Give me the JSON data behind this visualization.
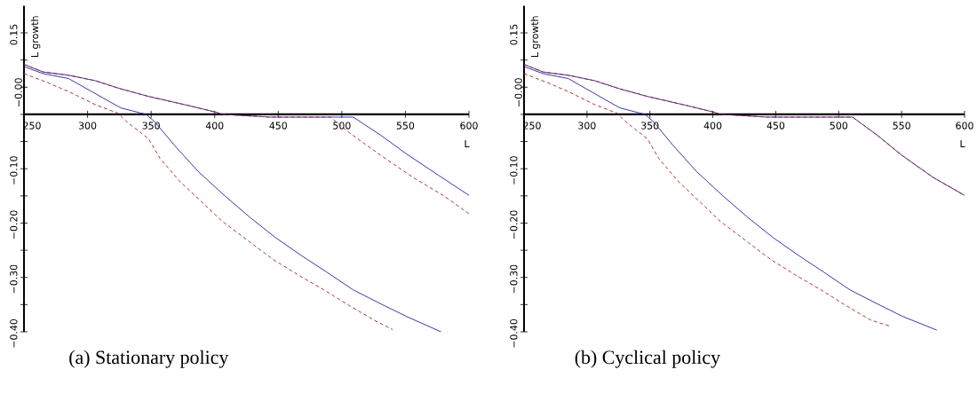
{
  "chart_data": [
    {
      "type": "line",
      "title": "(a) Stationary policy",
      "xlabel": "L",
      "ylabel": "L growth",
      "xlim": [
        250,
        600
      ],
      "ylim": [
        -0.4,
        0.2
      ],
      "xticks": [
        250,
        300,
        350,
        400,
        450,
        500,
        550,
        600
      ],
      "yticks": [
        {
          "value": 0.15,
          "label": "0.15"
        },
        {
          "value": 0.1,
          "label": null
        },
        {
          "value": 0.05,
          "label": null
        },
        {
          "value": 0,
          "label": null
        },
        {
          "value": -0.05,
          "label": null
        },
        {
          "value": -0.1,
          "label": "−0.10"
        },
        {
          "value": -0.15,
          "label": null
        },
        {
          "value": -0.2,
          "label": "−0.20"
        },
        {
          "value": -0.25,
          "label": null
        },
        {
          "value": -0.3,
          "label": "−0.30"
        },
        {
          "value": -0.35,
          "label": null
        },
        {
          "value": -0.4,
          "label": "−0.40"
        }
      ],
      "annotations": [
        "−0.00"
      ],
      "series": [
        {
          "color": "#2020a0",
          "line_style": "solid",
          "x": [
            250,
            265,
            285,
            306,
            326,
            348,
            378,
            401,
            406,
            443,
            509,
            531,
            551,
            576,
            600
          ],
          "values": [
            0.092,
            0.078,
            0.072,
            0.062,
            0.047,
            0.033,
            0.017,
            0.004,
            0,
            -0.005,
            -0.005,
            -0.039,
            -0.073,
            -0.112,
            -0.149
          ]
        },
        {
          "color": "#a02020",
          "line_style": "dashed",
          "x": [
            250,
            265,
            285,
            306,
            326,
            348,
            378,
            401,
            406,
            443,
            491,
            506,
            531,
            556,
            581,
            600
          ],
          "values": [
            0.092,
            0.078,
            0.072,
            0.062,
            0.047,
            0.033,
            0.017,
            0.004,
            0,
            -0.005,
            -0.005,
            -0.034,
            -0.076,
            -0.116,
            -0.151,
            -0.183
          ]
        },
        {
          "color": "#2020a0",
          "line_style": "solid",
          "x": [
            250,
            265,
            285,
            326,
            346,
            353,
            368,
            387,
            408,
            428,
            448,
            469,
            488,
            509,
            531,
            551,
            578
          ],
          "values": [
            0.088,
            0.075,
            0.066,
            0.012,
            0,
            -0.014,
            -0.056,
            -0.105,
            -0.15,
            -0.19,
            -0.227,
            -0.261,
            -0.29,
            -0.323,
            -0.349,
            -0.372,
            -0.4
          ]
        },
        {
          "color": "#a02020",
          "line_style": "dashed",
          "x": [
            250,
            269,
            286,
            306,
            324,
            331,
            348,
            357,
            372,
            387,
            406,
            426,
            446,
            466,
            486,
            506,
            525,
            540
          ],
          "values": [
            0.075,
            0.058,
            0.041,
            0.018,
            0.002,
            -0.014,
            -0.045,
            -0.081,
            -0.122,
            -0.155,
            -0.197,
            -0.232,
            -0.267,
            -0.296,
            -0.323,
            -0.352,
            -0.378,
            -0.396
          ]
        }
      ]
    },
    {
      "type": "line",
      "title": "(b) Cyclical policy",
      "xlabel": "L",
      "ylabel": "L growth",
      "xlim": [
        250,
        600
      ],
      "ylim": [
        -0.4,
        0.2
      ],
      "xticks": [
        250,
        300,
        350,
        400,
        450,
        500,
        550,
        600
      ],
      "yticks": [
        {
          "value": 0.15,
          "label": "0.15"
        },
        {
          "value": 0.1,
          "label": null
        },
        {
          "value": 0.05,
          "label": null
        },
        {
          "value": 0,
          "label": null
        },
        {
          "value": -0.05,
          "label": null
        },
        {
          "value": -0.1,
          "label": "−0.10"
        },
        {
          "value": -0.15,
          "label": null
        },
        {
          "value": -0.2,
          "label": "−0.20"
        },
        {
          "value": -0.25,
          "label": null
        },
        {
          "value": -0.3,
          "label": "−0.30"
        },
        {
          "value": -0.35,
          "label": null
        },
        {
          "value": -0.4,
          "label": "−0.40"
        }
      ],
      "annotations": [
        "−0.00"
      ],
      "series": [
        {
          "color": "#2020a0",
          "line_style": "solid",
          "x": [
            250,
            265,
            285,
            306,
            326,
            348,
            378,
            401,
            406,
            443,
            511,
            531,
            550,
            575,
            600
          ],
          "values": [
            0.092,
            0.078,
            0.072,
            0.062,
            0.047,
            0.033,
            0.017,
            0.004,
            0,
            -0.005,
            -0.005,
            -0.039,
            -0.075,
            -0.116,
            -0.149
          ]
        },
        {
          "color": "#a02020",
          "line_style": "dashed",
          "x": [
            250,
            265,
            285,
            306,
            326,
            348,
            378,
            401,
            406,
            443,
            511,
            531,
            550,
            575,
            600
          ],
          "values": [
            0.092,
            0.078,
            0.072,
            0.062,
            0.047,
            0.033,
            0.017,
            0.004,
            0,
            -0.005,
            -0.005,
            -0.039,
            -0.075,
            -0.116,
            -0.149
          ]
        },
        {
          "color": "#2020a0",
          "line_style": "solid",
          "x": [
            250,
            265,
            285,
            326,
            346,
            353,
            368,
            387,
            408,
            428,
            448,
            469,
            488,
            509,
            531,
            551,
            578
          ],
          "values": [
            0.088,
            0.075,
            0.066,
            0.012,
            0,
            -0.014,
            -0.056,
            -0.105,
            -0.15,
            -0.19,
            -0.227,
            -0.261,
            -0.29,
            -0.323,
            -0.349,
            -0.372,
            -0.397
          ]
        },
        {
          "color": "#a02020",
          "line_style": "dashed",
          "x": [
            250,
            269,
            286,
            306,
            324,
            331,
            348,
            357,
            372,
            387,
            406,
            426,
            446,
            466,
            486,
            506,
            525,
            541
          ],
          "values": [
            0.075,
            0.058,
            0.041,
            0.018,
            0.002,
            -0.014,
            -0.045,
            -0.081,
            -0.122,
            -0.155,
            -0.197,
            -0.232,
            -0.267,
            -0.296,
            -0.323,
            -0.352,
            -0.378,
            -0.39
          ]
        }
      ]
    }
  ]
}
